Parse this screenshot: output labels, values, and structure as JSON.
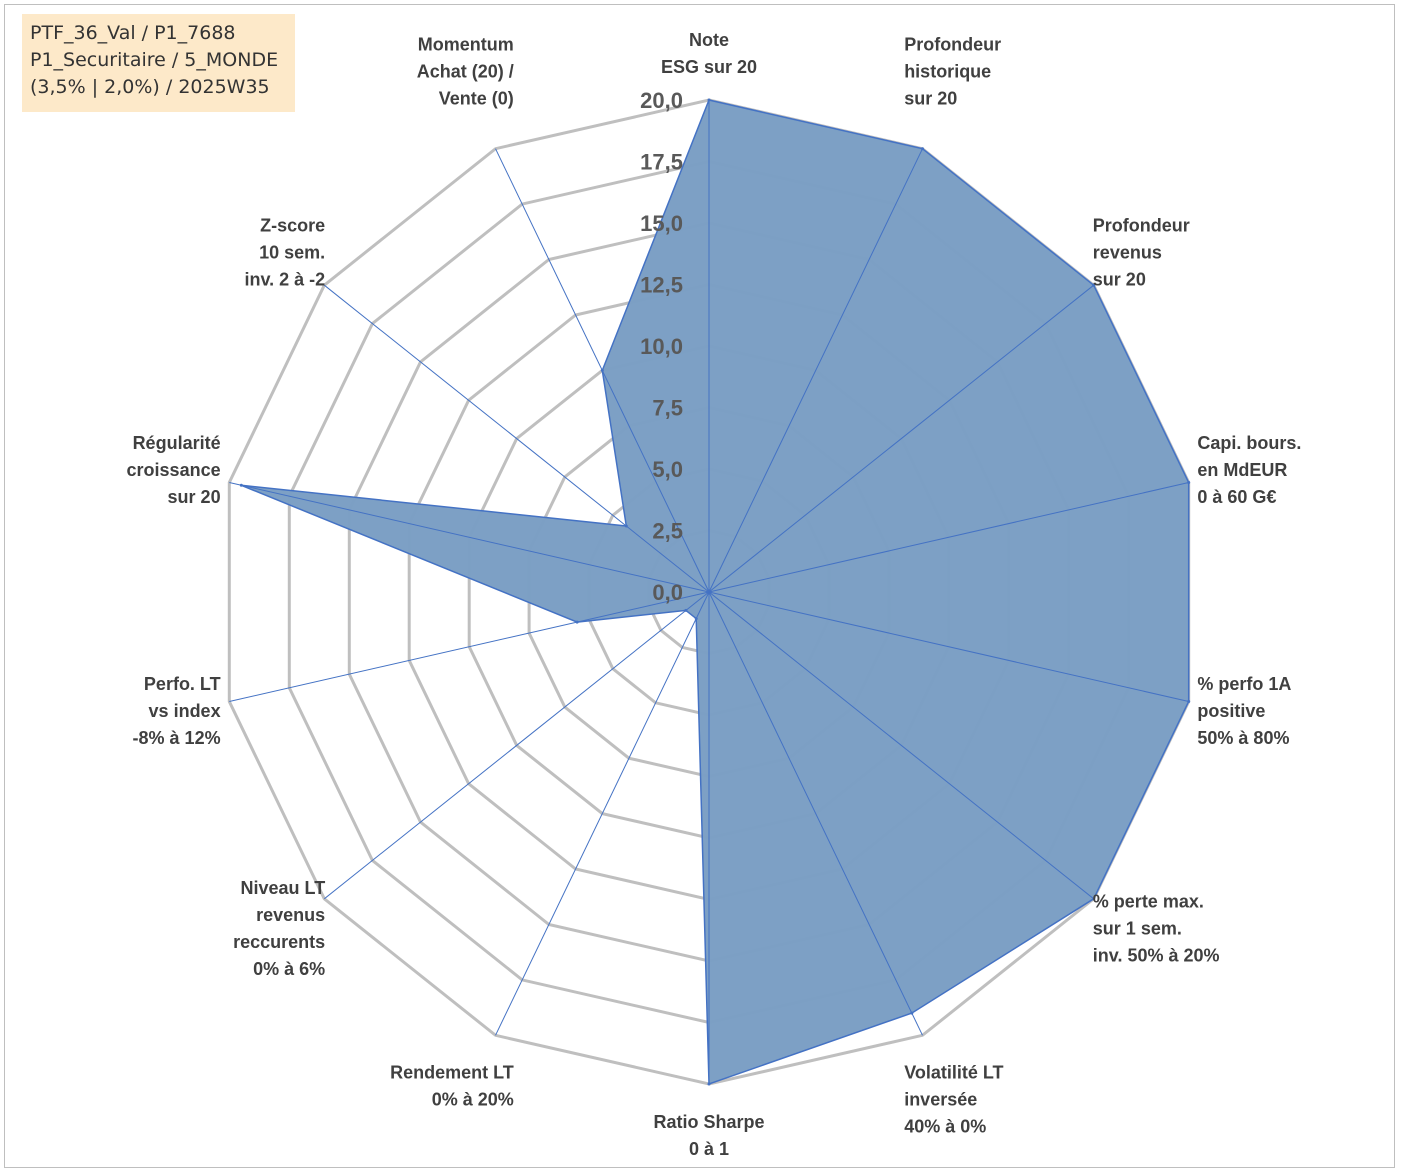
{
  "info_box": {
    "line1": "PTF_36_Val / P1_7688",
    "line2": "P1_Securitaire / 5_MONDE",
    "line3": "(3,5% | 2,0%) / 2025W35"
  },
  "chart_data": {
    "type": "radar",
    "title": "",
    "axes": [
      [
        "Note",
        "ESG sur 20"
      ],
      [
        "Profondeur",
        "historique",
        "sur 20"
      ],
      [
        "Profondeur",
        "revenus",
        "sur 20"
      ],
      [
        "Capi. bours.",
        "en MdEUR",
        "0 à 60 G€"
      ],
      [
        "% perfo 1A",
        "positive",
        "50% à 80%"
      ],
      [
        "% perte max.",
        "sur 1 sem.",
        "inv. 50% à 20%"
      ],
      [
        "Volatilité LT",
        "inversée",
        "40% à 0%"
      ],
      [
        "Ratio Sharpe",
        "0 à 1"
      ],
      [
        "Rendement LT",
        "0% à 20%"
      ],
      [
        "Niveau LT",
        "revenus",
        "reccurents",
        "0% à 6%"
      ],
      [
        "Perfo. LT",
        "vs index",
        "-8% à 12%"
      ],
      [
        "Régularité",
        "croissance",
        "sur 20"
      ],
      [
        "Z-score",
        "10 sem.",
        "inv. 2 à -2"
      ],
      [
        "Momentum",
        "Achat (20) /",
        "Vente (0)"
      ]
    ],
    "series": [
      {
        "values": [
          20,
          20,
          20,
          20,
          20,
          20,
          19,
          20,
          1.2,
          1.2,
          5.5,
          19.5,
          4.3,
          10
        ]
      }
    ],
    "rlim": [
      0,
      20
    ],
    "ticks": [
      "0,0",
      "2,5",
      "5,0",
      "7,5",
      "10,0",
      "12,5",
      "15,0",
      "17,5",
      "20,0"
    ],
    "grid": true,
    "legend": "none",
    "colors": {
      "fill": "#7a9ec4",
      "stroke": "#4472c4",
      "grid": "#bfbfbf",
      "spoke": "#4472c4"
    }
  }
}
